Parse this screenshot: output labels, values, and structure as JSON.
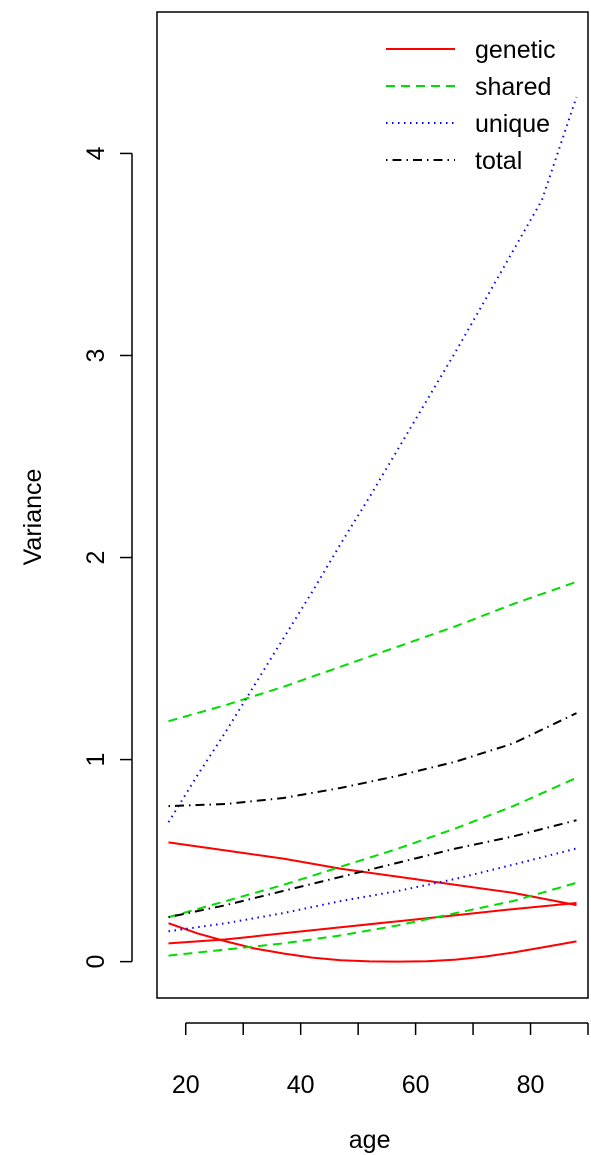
{
  "chart_data": {
    "type": "line",
    "title": "",
    "xlabel": "age",
    "ylabel": "Variance",
    "xlim": [
      15,
      90
    ],
    "ylim": [
      -0.18,
      4.7
    ],
    "xticks": [
      20,
      40,
      60,
      80
    ],
    "xtick_labels": [
      "20",
      "40",
      "60",
      "80"
    ],
    "xticks_minor": [
      30,
      50,
      70,
      90
    ],
    "yticks": [
      0,
      1,
      2,
      3,
      4
    ],
    "ytick_labels": [
      "0",
      "1",
      "2",
      "3",
      "4"
    ],
    "grid": false,
    "legend_position": "top-right",
    "series": [
      {
        "name": "genetic",
        "group": "genetic",
        "color": "#ff0000",
        "dash": "solid",
        "x": [
          17,
          27,
          37,
          47,
          57,
          67,
          77,
          88
        ],
        "y": [
          0.59,
          0.55,
          0.51,
          0.46,
          0.42,
          0.38,
          0.34,
          0.28
        ]
      },
      {
        "name": "",
        "group": "genetic",
        "color": "#ff0000",
        "dash": "solid",
        "x": [
          17,
          27,
          37,
          47,
          57,
          67,
          77,
          88
        ],
        "y": [
          0.09,
          0.11,
          0.14,
          0.17,
          0.2,
          0.23,
          0.26,
          0.29
        ]
      },
      {
        "name": "",
        "group": "genetic",
        "color": "#ff0000",
        "dash": "solid",
        "x": [
          17,
          22,
          27,
          32,
          37,
          42,
          47,
          52,
          57,
          62,
          67,
          72,
          77,
          82,
          88
        ],
        "y": [
          0.19,
          0.14,
          0.1,
          0.065,
          0.04,
          0.02,
          0.007,
          0.001,
          0.0,
          0.002,
          0.01,
          0.025,
          0.045,
          0.07,
          0.1
        ]
      },
      {
        "name": "shared",
        "group": "shared",
        "color": "#00dd00",
        "dash": "dashed",
        "x": [
          17,
          27,
          37,
          47,
          57,
          67,
          77,
          88
        ],
        "y": [
          1.19,
          1.27,
          1.36,
          1.46,
          1.56,
          1.66,
          1.77,
          1.88
        ]
      },
      {
        "name": "",
        "group": "shared",
        "color": "#00dd00",
        "dash": "dashed",
        "x": [
          17,
          27,
          37,
          47,
          57,
          67,
          77,
          88
        ],
        "y": [
          0.22,
          0.3,
          0.38,
          0.47,
          0.56,
          0.66,
          0.77,
          0.91
        ]
      },
      {
        "name": "",
        "group": "shared",
        "color": "#00dd00",
        "dash": "dashed",
        "x": [
          17,
          27,
          37,
          47,
          57,
          67,
          77,
          88
        ],
        "y": [
          0.03,
          0.06,
          0.09,
          0.13,
          0.18,
          0.24,
          0.3,
          0.39
        ]
      },
      {
        "name": "unique",
        "group": "unique",
        "color": "#0000ff",
        "dash": "dotted",
        "x": [
          17,
          22,
          27,
          32,
          37,
          42,
          47,
          52,
          57,
          62,
          67,
          72,
          77,
          82,
          88
        ],
        "y": [
          0.69,
          0.92,
          1.14,
          1.37,
          1.6,
          1.83,
          2.07,
          2.3,
          2.54,
          2.78,
          3.02,
          3.27,
          3.52,
          3.77,
          4.28
        ]
      },
      {
        "name": "",
        "group": "unique",
        "color": "#0000ff",
        "dash": "dotted",
        "x": [
          17,
          27,
          37,
          47,
          57,
          67,
          77,
          88
        ],
        "y": [
          0.15,
          0.19,
          0.24,
          0.3,
          0.35,
          0.41,
          0.48,
          0.56
        ]
      },
      {
        "name": "total",
        "group": "total",
        "color": "#000000",
        "dash": "dotdash",
        "x": [
          17,
          27,
          37,
          47,
          57,
          67,
          77,
          88
        ],
        "y": [
          0.77,
          0.78,
          0.81,
          0.86,
          0.92,
          0.99,
          1.08,
          1.23
        ]
      },
      {
        "name": "",
        "group": "total",
        "color": "#000000",
        "dash": "dotdash",
        "x": [
          17,
          27,
          37,
          47,
          57,
          67,
          77,
          88
        ],
        "y": [
          0.22,
          0.28,
          0.35,
          0.42,
          0.49,
          0.56,
          0.62,
          0.7
        ]
      }
    ],
    "legend": [
      {
        "label": "genetic",
        "color": "#ff0000",
        "dash": "solid"
      },
      {
        "label": "shared",
        "color": "#00dd00",
        "dash": "dashed"
      },
      {
        "label": "unique",
        "color": "#0000ff",
        "dash": "dotted"
      },
      {
        "label": "total",
        "color": "#000000",
        "dash": "dotdash"
      }
    ]
  }
}
